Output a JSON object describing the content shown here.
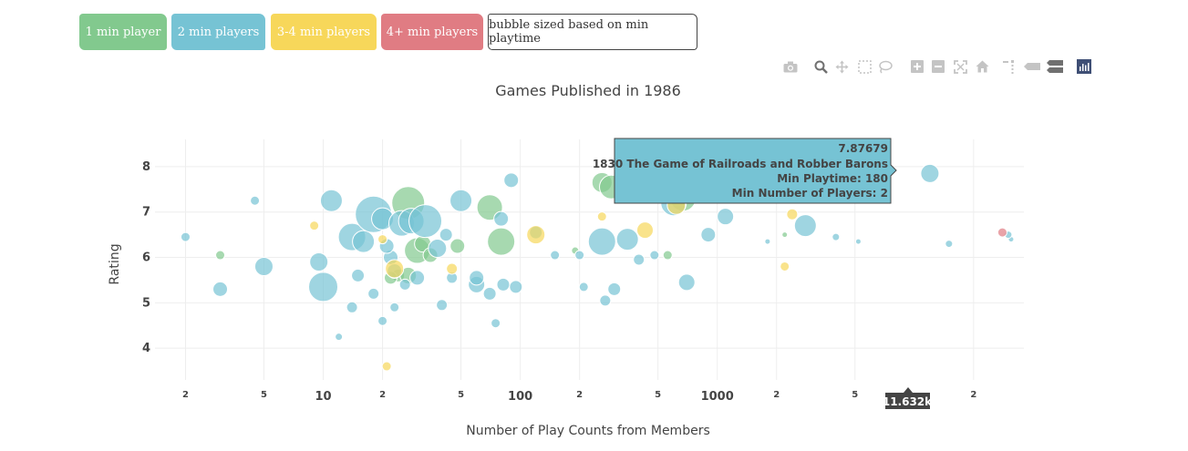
{
  "buttons": {
    "one": "1 min player",
    "two": "2 min players",
    "three": "3-4 min players",
    "four": "4+ min players",
    "size": "bubble sized based on min playtime"
  },
  "toolbar_icons": [
    "camera-icon",
    "zoom-icon",
    "pan-icon",
    "box-select-icon",
    "lasso-icon",
    "zoom-in-icon",
    "zoom-out-icon",
    "autoscale-icon",
    "reset-axes-icon",
    "spike-lines-icon",
    "hover-closest-icon",
    "hover-compare-icon",
    "plotly-logo-icon"
  ],
  "colors": {
    "one": "#82c98e",
    "two": "#76c3d4",
    "three": "#f7d75a",
    "four": "#e07c83"
  },
  "tooltip": {
    "rating": "7.87679",
    "name": "1830 The Game of Railroads and Robber Barons",
    "playtime": "Min Playtime: 180",
    "players": "Min Number of Players: 2"
  },
  "x_hover_label": "11.632k",
  "chart_data": {
    "type": "scatter",
    "title": "Games Published in 1986",
    "xlabel": "Number of Play Counts from Members",
    "ylabel": "Rating",
    "x_scale": "log",
    "xlim": [
      1.4,
      36000
    ],
    "ylim": [
      3.3,
      8.6
    ],
    "x_ticks": [
      {
        "v": 2,
        "label": "2",
        "major": false
      },
      {
        "v": 5,
        "label": "5",
        "major": false
      },
      {
        "v": 10,
        "label": "10",
        "major": true
      },
      {
        "v": 20,
        "label": "2",
        "major": false
      },
      {
        "v": 50,
        "label": "5",
        "major": false
      },
      {
        "v": 100,
        "label": "100",
        "major": true
      },
      {
        "v": 200,
        "label": "2",
        "major": false
      },
      {
        "v": 500,
        "label": "5",
        "major": false
      },
      {
        "v": 1000,
        "label": "1000",
        "major": true
      },
      {
        "v": 2000,
        "label": "2",
        "major": false
      },
      {
        "v": 5000,
        "label": "5",
        "major": false
      },
      {
        "v": 20000,
        "label": "2",
        "major": false
      }
    ],
    "y_ticks": [
      4,
      5,
      6,
      7,
      8
    ],
    "bubble_size": "min playtime",
    "series": [
      {
        "name": "1 min player",
        "color": "#82c98e",
        "x": [
          3,
          27,
          30,
          32,
          35,
          70,
          80,
          48,
          24,
          190,
          260,
          290,
          560,
          670,
          2200,
          27,
          22
        ],
        "y": [
          6.05,
          7.2,
          6.15,
          6.3,
          6.05,
          7.1,
          6.35,
          6.25,
          5.6,
          6.15,
          7.65,
          7.55,
          6.05,
          7.3,
          6.5,
          5.6,
          5.55
        ],
        "size": [
          5,
          18,
          14,
          9,
          8,
          14,
          15,
          8,
          7,
          4,
          11,
          13,
          5,
          14,
          3,
          9,
          7
        ]
      },
      {
        "name": "2 min players",
        "color": "#76c3d4",
        "x": [
          2,
          4.5,
          3,
          5,
          10,
          9.5,
          11,
          14,
          16,
          18,
          20,
          22,
          25,
          28,
          33,
          38,
          42,
          50,
          60,
          70,
          80,
          90,
          95,
          120,
          150,
          200,
          260,
          350,
          400,
          480,
          600,
          700,
          900,
          1100,
          1800,
          2800,
          4000,
          5200,
          12000,
          15000,
          31000,
          30000,
          15,
          20,
          14,
          12,
          40,
          60,
          75,
          82,
          210,
          270,
          300,
          30,
          45,
          23,
          18,
          23,
          26,
          21
        ],
        "y": [
          6.45,
          7.25,
          5.3,
          5.8,
          5.35,
          5.9,
          7.25,
          6.45,
          6.35,
          6.95,
          6.85,
          6.0,
          6.75,
          6.8,
          6.8,
          6.2,
          6.5,
          7.25,
          5.4,
          5.2,
          6.85,
          7.7,
          5.35,
          6.55,
          6.05,
          6.05,
          6.35,
          6.4,
          5.95,
          6.05,
          7.2,
          5.45,
          6.5,
          6.9,
          6.35,
          6.7,
          6.45,
          6.35,
          7.85,
          6.3,
          6.4,
          6.5,
          5.6,
          4.6,
          4.9,
          4.25,
          4.95,
          5.55,
          4.55,
          5.4,
          5.35,
          5.05,
          5.3,
          5.55,
          5.55,
          5.7,
          5.2,
          4.9,
          5.4,
          6.25
        ],
        "size": [
          5,
          5,
          8,
          10,
          16,
          10,
          12,
          15,
          12,
          20,
          12,
          8,
          14,
          14,
          18,
          10,
          7,
          12,
          9,
          7,
          8,
          8,
          7,
          7,
          5,
          5,
          15,
          12,
          6,
          5,
          14,
          9,
          8,
          9,
          3,
          12,
          4,
          3,
          10,
          4,
          3,
          4,
          7,
          5,
          6,
          4,
          6,
          8,
          5,
          7,
          5,
          6,
          7,
          8,
          6,
          8,
          6,
          5,
          6,
          8
        ]
      },
      {
        "name": "3-4 min players",
        "color": "#f7d75a",
        "x": [
          9,
          21,
          23,
          45,
          120,
          260,
          430,
          620,
          2200,
          2400,
          20
        ],
        "y": [
          6.7,
          3.6,
          5.75,
          5.75,
          6.5,
          6.9,
          6.6,
          7.15,
          5.8,
          6.95,
          6.4
        ],
        "size": [
          5,
          5,
          10,
          6,
          10,
          5,
          9,
          10,
          5,
          6,
          5
        ]
      },
      {
        "name": "4+ min players",
        "color": "#e07c83",
        "x": [
          28000
        ],
        "y": [
          6.55
        ],
        "size": [
          5
        ]
      }
    ]
  }
}
